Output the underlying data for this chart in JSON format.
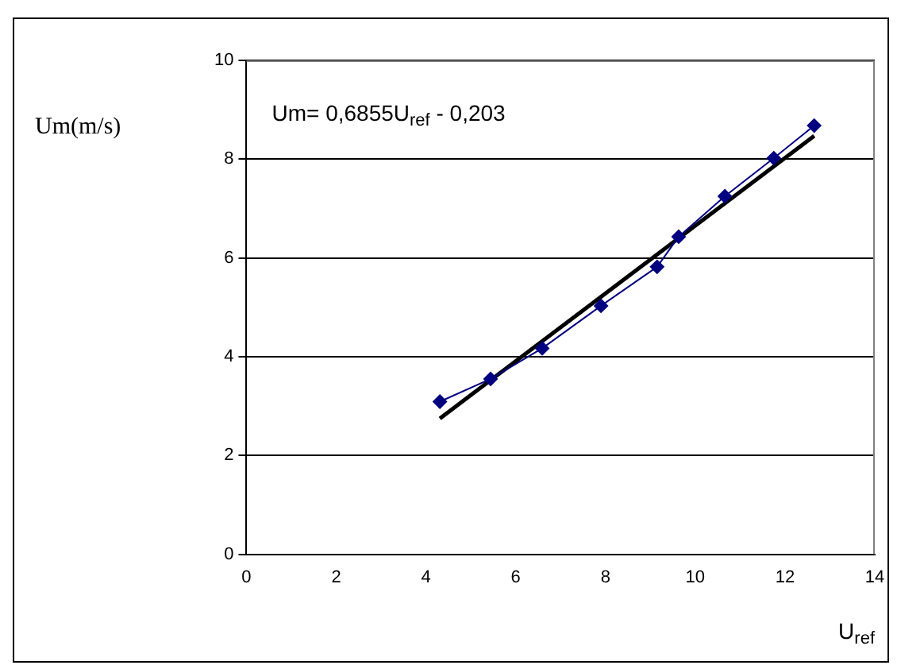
{
  "chart_data": {
    "type": "line",
    "xlabel": "U$_{ref}$",
    "ylabel": "Um(m/s)",
    "annotations": [
      "Um= 0,6855U$_{ref}$ - 0,203"
    ],
    "xlim": [
      0,
      14
    ],
    "xticks": [
      0,
      2,
      4,
      6,
      8,
      10,
      12,
      14
    ],
    "ylim": [
      0,
      10
    ],
    "yticks": [
      0,
      2,
      4,
      6,
      8,
      10
    ],
    "grid": "y",
    "legend": false,
    "series": [
      {
        "type": "line",
        "color": "#000080",
        "marker": "diamond",
        "line_style": "solid",
        "x": [
          4.31,
          5.44,
          6.59,
          7.9,
          9.15,
          9.63,
          10.66,
          11.75,
          12.65
        ],
        "values": [
          3.09,
          3.55,
          4.17,
          5.03,
          5.82,
          6.43,
          7.25,
          8.02,
          8.68
        ]
      },
      {
        "type": "line",
        "color": "#000000",
        "marker": "none",
        "line_style": "solid",
        "x": [
          4.31,
          12.65
        ],
        "values": [
          2.75,
          8.47
        ]
      }
    ]
  }
}
